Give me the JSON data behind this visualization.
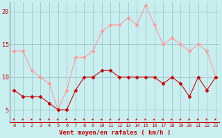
{
  "hours": [
    0,
    1,
    2,
    3,
    4,
    5,
    6,
    7,
    8,
    9,
    10,
    11,
    12,
    13,
    14,
    15,
    16,
    17,
    18,
    19,
    20,
    21,
    22,
    23
  ],
  "vent_moyen": [
    8,
    7,
    7,
    7,
    6,
    5,
    5,
    8,
    10,
    10,
    11,
    11,
    10,
    10,
    10,
    10,
    10,
    9,
    10,
    9,
    7,
    10,
    8,
    10
  ],
  "rafales": [
    14,
    14,
    11,
    10,
    9,
    5,
    8,
    13,
    13,
    14,
    17,
    18,
    18,
    19,
    18,
    21,
    18,
    15,
    16,
    15,
    14,
    15,
    14,
    10
  ],
  "xlabel": "Vent moyen/en rafales ( km/h )",
  "ylim": [
    3,
    21.5
  ],
  "xlim": [
    -0.5,
    23.5
  ],
  "yticks": [
    5,
    10,
    15,
    20
  ],
  "bg_color": "#c8eef0",
  "grid_color": "#a0c8c8",
  "line_color_moyen": "#cc0000",
  "line_color_rafales": "#ff9999",
  "xlabel_color": "#cc0000",
  "tick_color": "#cc0000",
  "arrow_symbol": "↙",
  "spine_color": "#888888"
}
